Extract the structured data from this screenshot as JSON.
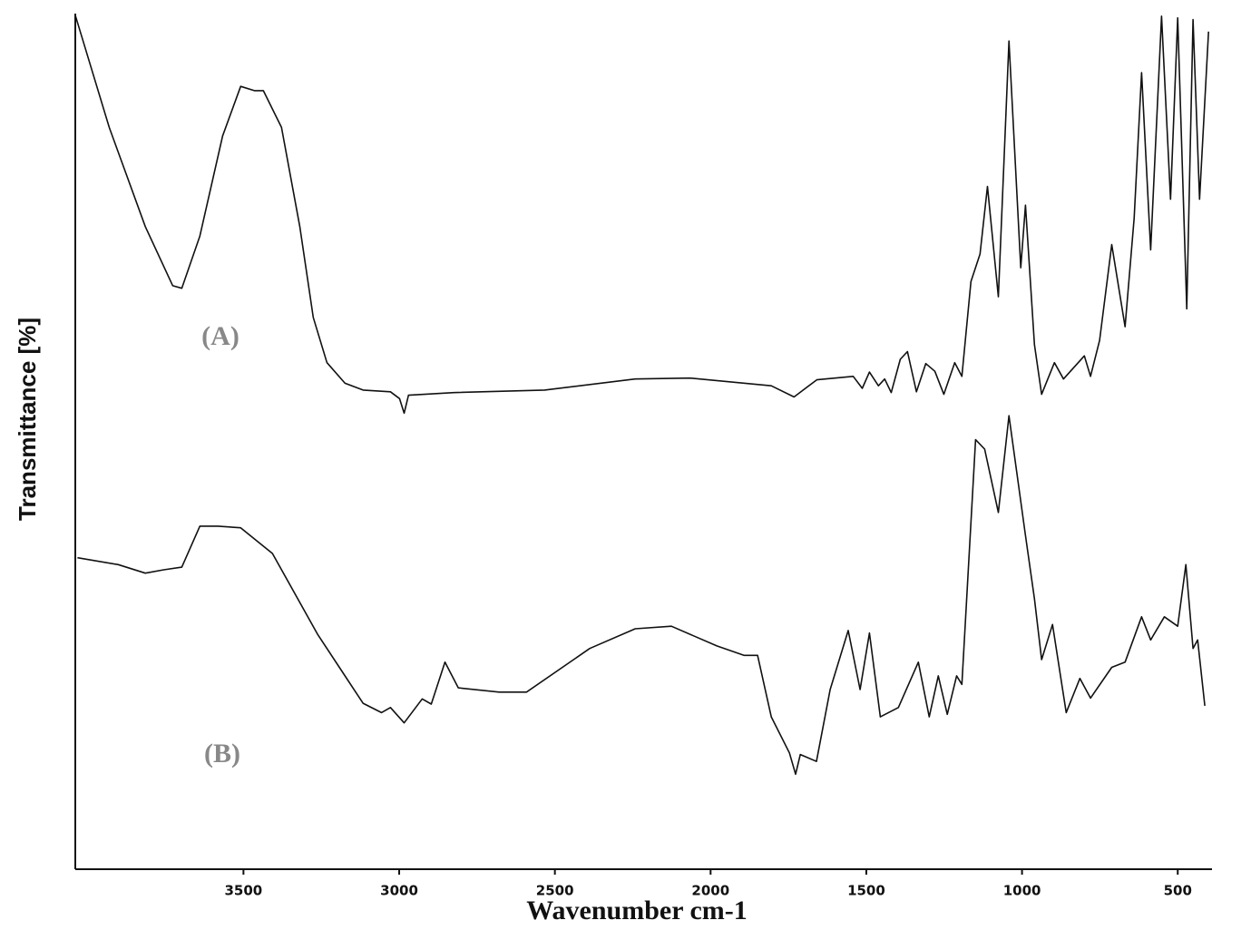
{
  "chart_data": {
    "type": "line",
    "x_label": "Wavenumber cm-1",
    "y_label": "Transmittance [%]",
    "xlim": [
      4040,
      390
    ],
    "ylim": [
      0,
      100
    ],
    "xticks": [
      3500,
      3000,
      2500,
      2000,
      1500,
      1000,
      500
    ],
    "series": [
      {
        "name": "(A)",
        "color": "#111111",
        "x": [
          4039,
          3931,
          3815,
          3727,
          3698,
          3640,
          3567,
          3509,
          3465,
          3436,
          3378,
          3319,
          3276,
          3232,
          3174,
          3116,
          3028,
          2999,
          2984,
          2970,
          2824,
          2533,
          2242,
          2067,
          1805,
          1732,
          1659,
          1542,
          1513,
          1490,
          1461,
          1441,
          1420,
          1391,
          1368,
          1339,
          1309,
          1280,
          1251,
          1216,
          1193,
          1164,
          1135,
          1111,
          1076,
          1042,
          1004,
          989,
          960,
          937,
          896,
          867,
          800,
          780,
          751,
          712,
          669,
          640,
          616,
          587,
          552,
          523,
          500,
          471,
          451,
          430,
          401
        ],
        "values": [
          99.7,
          86.7,
          75.1,
          68.2,
          67.9,
          74.0,
          85.7,
          91.5,
          91.0,
          91.0,
          86.7,
          75.1,
          64.5,
          59.2,
          56.8,
          56.0,
          55.8,
          55.0,
          53.3,
          55.4,
          55.7,
          56.0,
          57.3,
          57.4,
          56.5,
          55.2,
          57.2,
          57.6,
          56.2,
          58.1,
          56.5,
          57.3,
          55.7,
          59.6,
          60.5,
          55.8,
          59.1,
          58.2,
          55.5,
          59.2,
          57.6,
          68.7,
          71.9,
          79.8,
          66.9,
          96.8,
          70.3,
          77.6,
          61.3,
          55.5,
          59.2,
          57.3,
          60.0,
          57.6,
          61.8,
          73.0,
          63.4,
          76.1,
          93.1,
          72.4,
          99.7,
          78.3,
          99.5,
          65.5,
          99.3,
          78.3,
          97.9
        ]
      },
      {
        "name": "(B)",
        "color": "#111111",
        "x": [
          4033,
          3902,
          3815,
          3756,
          3698,
          3640,
          3582,
          3509,
          3407,
          3261,
          3116,
          3057,
          3028,
          2984,
          2926,
          2897,
          2853,
          2810,
          2679,
          2591,
          2388,
          2242,
          2126,
          1980,
          1893,
          1849,
          1805,
          1747,
          1727,
          1712,
          1660,
          1616,
          1558,
          1520,
          1490,
          1455,
          1397,
          1333,
          1298,
          1269,
          1240,
          1210,
          1193,
          1149,
          1120,
          1076,
          1042,
          989,
          960,
          937,
          902,
          858,
          814,
          780,
          712,
          669,
          616,
          587,
          543,
          500,
          474,
          451,
          436,
          413
        ],
        "values": [
          36.4,
          35.6,
          34.6,
          35.0,
          35.3,
          40.1,
          40.1,
          39.9,
          36.9,
          27.4,
          19.4,
          18.3,
          18.9,
          17.1,
          19.9,
          19.3,
          24.2,
          21.2,
          20.7,
          20.7,
          25.8,
          28.1,
          28.4,
          26.1,
          25.0,
          25.0,
          17.8,
          13.6,
          11.1,
          13.4,
          12.6,
          21.0,
          27.9,
          21.0,
          27.6,
          17.8,
          18.9,
          24.2,
          17.8,
          22.6,
          18.1,
          22.6,
          21.6,
          50.2,
          49.1,
          41.7,
          53.0,
          39.0,
          31.6,
          24.5,
          28.6,
          18.3,
          22.3,
          20.0,
          23.6,
          24.2,
          29.5,
          26.8,
          29.5,
          28.4,
          35.6,
          25.8,
          26.8,
          19.1
        ]
      }
    ]
  }
}
